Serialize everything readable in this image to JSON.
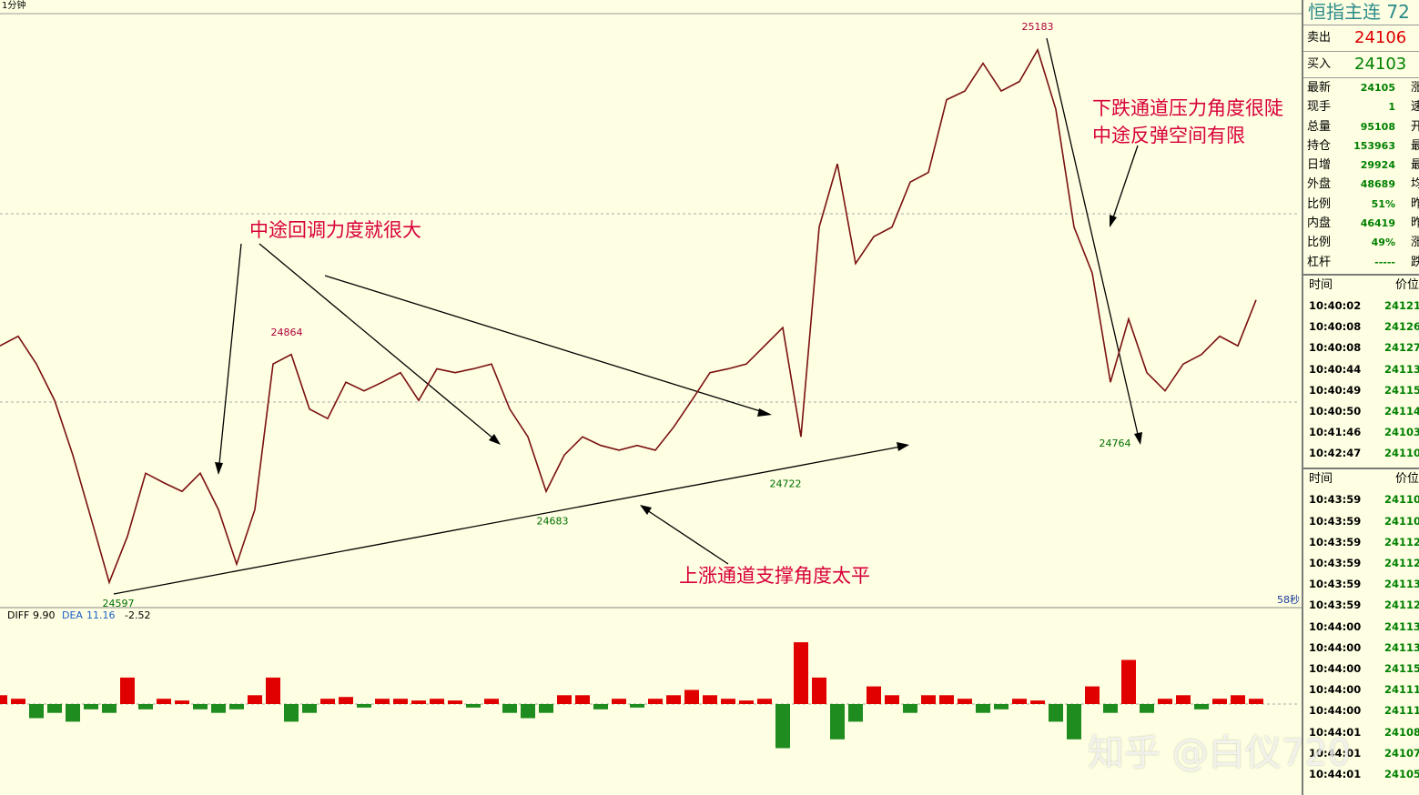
{
  "header": {
    "period": "1分钟"
  },
  "chart": {
    "prices": [
      24858,
      24868,
      24839,
      24801,
      24744,
      24678,
      24611,
      24659,
      24725,
      24715,
      24706,
      24725,
      24687,
      24630,
      24687,
      24839,
      24849,
      24792,
      24782,
      24820,
      24811,
      24820,
      24830,
      24801,
      24834,
      24830,
      24834,
      24839,
      24792,
      24763,
      24706,
      24744,
      24763,
      24754,
      24749,
      24754,
      24749,
      24773,
      24801,
      24830,
      24834,
      24839,
      24858,
      24877,
      24763,
      24982,
      25048,
      24944,
      24972,
      24982,
      25029,
      25039,
      25115,
      25124,
      25153,
      25124,
      25134,
      25167,
      25105,
      24982,
      24934,
      24820,
      24886,
      24830,
      24811,
      24839,
      24849,
      24868,
      24858,
      24906
    ],
    "price_labels": [
      24597,
      24864,
      24683,
      24722,
      25183,
      24764
    ],
    "notes": [
      "中途回调力度就很大",
      "上涨通道支撑角度太平",
      "下跌通道压力角度很陡",
      "中途反弹空间有限"
    ],
    "timer": "58秒"
  },
  "macd": {
    "diff_label": "DIFF",
    "diff": {
      "value": 9.9,
      "label": "9.90"
    },
    "dea_label": "DEA",
    "dea": 11.16,
    "macd": -2.52,
    "histogram": [
      5,
      3,
      -8,
      -5,
      -10,
      -3,
      -5,
      15,
      -3,
      3,
      2,
      -3,
      -5,
      -3,
      5,
      15,
      -10,
      -5,
      3,
      4,
      -2,
      3,
      3,
      2,
      3,
      2,
      -2,
      3,
      -5,
      -8,
      -5,
      5,
      5,
      -3,
      3,
      -2,
      3,
      5,
      8,
      5,
      3,
      2,
      3,
      -25,
      35,
      15,
      -20,
      -10,
      10,
      5,
      -5,
      5,
      5,
      3,
      -5,
      -3,
      3,
      2,
      -10,
      -20,
      10,
      -5,
      25,
      -5,
      3,
      5,
      -3,
      3,
      5,
      3
    ]
  },
  "quote": {
    "title": "恒指主连 72",
    "ask_label": "卖出",
    "ask": 24106,
    "bid_label": "买入",
    "bid": 24103,
    "rows": [
      [
        "最新",
        "24105",
        "涨"
      ],
      [
        "现手",
        "1",
        "速"
      ],
      [
        "总量",
        "95108",
        "开"
      ],
      [
        "持仓",
        "153963",
        "最"
      ],
      [
        "日增",
        "29924",
        "最"
      ],
      [
        "外盘",
        "48689",
        "均"
      ],
      [
        "比例",
        "51%",
        "昨"
      ],
      [
        "内盘",
        "46419",
        "昨"
      ],
      [
        "比例",
        "49%",
        "涨"
      ],
      [
        "杠杆",
        "-----",
        "跌"
      ]
    ]
  },
  "ticks_1": {
    "header": [
      "时间",
      "价位"
    ],
    "rows": [
      [
        "10:40:02",
        "24121"
      ],
      [
        "10:40:08",
        "24126"
      ],
      [
        "10:40:08",
        "24127"
      ],
      [
        "10:40:44",
        "24113"
      ],
      [
        "10:40:49",
        "24115"
      ],
      [
        "10:40:50",
        "24114"
      ],
      [
        "10:41:46",
        "24103"
      ],
      [
        "10:42:47",
        "24110"
      ]
    ]
  },
  "ticks_2": {
    "header": [
      "时间",
      "价位"
    ],
    "rows": [
      [
        "10:43:59",
        "24110"
      ],
      [
        "10:43:59",
        "24110"
      ],
      [
        "10:43:59",
        "24112"
      ],
      [
        "10:43:59",
        "24112"
      ],
      [
        "10:43:59",
        "24113"
      ],
      [
        "10:43:59",
        "24112"
      ],
      [
        "10:44:00",
        "24113"
      ],
      [
        "10:44:00",
        "24113"
      ],
      [
        "10:44:00",
        "24115"
      ],
      [
        "10:44:00",
        "24111"
      ],
      [
        "10:44:00",
        "24111"
      ],
      [
        "10:44:01",
        "24108"
      ],
      [
        "10:44:01",
        "24107"
      ],
      [
        "10:44:01",
        "24105"
      ]
    ]
  },
  "watermark": "知乎 @白仪720"
}
